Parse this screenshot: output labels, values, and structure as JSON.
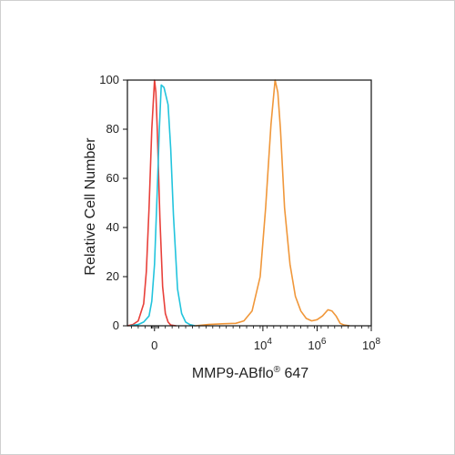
{
  "chart_data": {
    "type": "line",
    "title": "",
    "xlabel": "MMP9-ABflo",
    "xlabel_mark": "®",
    "xlabel_suffix": " 647",
    "ylabel": "Relative Cell Number",
    "x_scale": "biexponential",
    "xlim": [
      -1,
      8
    ],
    "ylim": [
      0,
      100
    ],
    "y_ticks": [
      0,
      20,
      40,
      60,
      80,
      100
    ],
    "x_ticks": [
      {
        "value": 0,
        "base": "0",
        "exp": ""
      },
      {
        "value": 4,
        "base": "10",
        "exp": "4"
      },
      {
        "value": 6,
        "base": "10",
        "exp": "6"
      },
      {
        "value": 8,
        "base": "10",
        "exp": "8"
      }
    ],
    "grid": false,
    "legend": "none",
    "series": [
      {
        "color": "#e8403a",
        "x": [
          -1.0,
          -0.8,
          -0.6,
          -0.4,
          -0.3,
          -0.2,
          -0.1,
          0.0,
          0.05,
          0.1,
          0.2,
          0.3,
          0.4,
          0.5,
          0.6,
          0.8
        ],
        "values": [
          0,
          0.5,
          2,
          9,
          22,
          48,
          80,
          100,
          95,
          80,
          44,
          16,
          5,
          1.5,
          0.3,
          0
        ]
      },
      {
        "color": "#22c4dd",
        "x": [
          -0.9,
          -0.6,
          -0.4,
          -0.2,
          -0.1,
          0.0,
          0.1,
          0.18,
          0.25,
          0.35,
          0.5,
          0.6,
          0.7,
          0.85,
          1.0,
          1.15,
          1.3,
          1.5
        ],
        "values": [
          0,
          0.5,
          1.5,
          4,
          10,
          25,
          55,
          80,
          98,
          97,
          90,
          72,
          45,
          15,
          5,
          1.5,
          0.5,
          0
        ]
      },
      {
        "color": "#f0973a",
        "x": [
          1.5,
          2.0,
          2.5,
          3.0,
          3.3,
          3.6,
          3.9,
          4.1,
          4.3,
          4.45,
          4.55,
          4.65,
          4.8,
          5.0,
          5.2,
          5.4,
          5.6,
          5.8,
          6.0,
          6.2,
          6.4,
          6.55,
          6.7,
          6.85,
          7.0,
          7.2
        ],
        "values": [
          0,
          0.5,
          0.8,
          1,
          2,
          6,
          20,
          48,
          82,
          100,
          95,
          80,
          48,
          25,
          12,
          6,
          3,
          2,
          2.5,
          4,
          6.5,
          6,
          4,
          1,
          0.3,
          0
        ]
      }
    ]
  }
}
